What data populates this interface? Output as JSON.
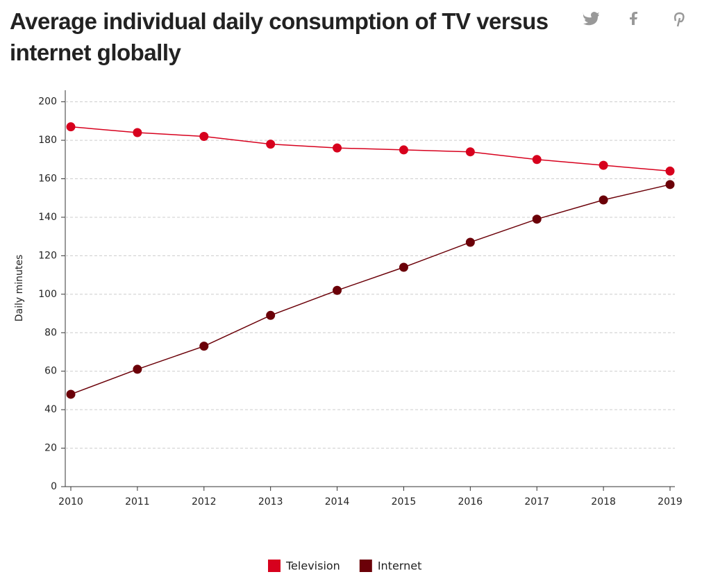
{
  "chart_data": {
    "type": "line",
    "title": "Average individual daily consumption of TV versus internet globally",
    "y_label": "Daily minutes",
    "categories": [
      "2010",
      "2011",
      "2012",
      "2013",
      "2014",
      "2015",
      "2016",
      "2017",
      "2018",
      "2019"
    ],
    "series": [
      {
        "name": "Television",
        "color": "#d7001d",
        "values": [
          187,
          184,
          182,
          178,
          176,
          175,
          174,
          170,
          167,
          164
        ]
      },
      {
        "name": "Internet",
        "color": "#6b0008",
        "values": [
          48,
          61,
          73,
          89,
          102,
          114,
          127,
          139,
          149,
          157
        ]
      }
    ],
    "ylim": [
      0,
      206
    ],
    "yticks": [
      0,
      20,
      40,
      60,
      80,
      100,
      120,
      140,
      160,
      180,
      200
    ],
    "grid": true
  }
}
